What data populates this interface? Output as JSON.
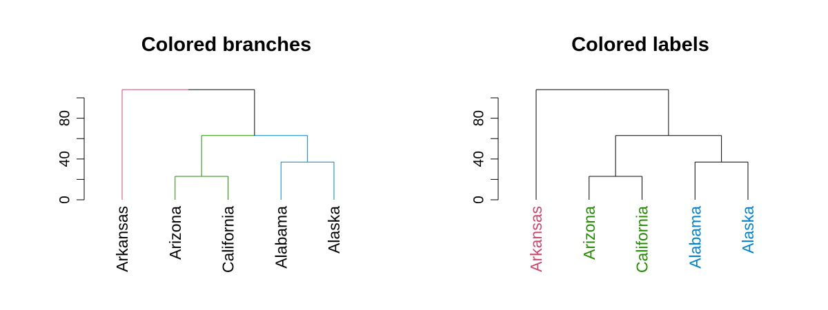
{
  "chart_data": [
    {
      "type": "dendrogram",
      "title": "Colored branches",
      "variant": "colored-branches",
      "ylim": [
        0,
        100
      ],
      "yticks": [
        0,
        40,
        80
      ],
      "leaves": [
        {
          "label": "Arkansas",
          "color": "#CC476B"
        },
        {
          "label": "Arizona",
          "color": "#228B00"
        },
        {
          "label": "California",
          "color": "#228B00"
        },
        {
          "label": "Alabama",
          "color": "#0082CE"
        },
        {
          "label": "Alaska",
          "color": "#0082CE"
        }
      ],
      "merges": [
        {
          "left": 2,
          "right": 3,
          "height": 23,
          "color": "#228B00"
        },
        {
          "left": 4,
          "right": 5,
          "height": 37,
          "color": "#0082CE"
        },
        {
          "left": "m1",
          "right": "m2",
          "height": 63,
          "left_color": "#228B00",
          "right_color": "#0082CE"
        },
        {
          "left": 1,
          "right": "m3",
          "height": 108,
          "left_color": "#CC476B",
          "right_color": "#000000"
        }
      ]
    },
    {
      "type": "dendrogram",
      "title": "Colored labels",
      "variant": "colored-labels",
      "ylim": [
        0,
        100
      ],
      "yticks": [
        0,
        40,
        80
      ],
      "leaves": [
        {
          "label": "Arkansas",
          "color": "#CC476B"
        },
        {
          "label": "Arizona",
          "color": "#228B00"
        },
        {
          "label": "California",
          "color": "#228B00"
        },
        {
          "label": "Alabama",
          "color": "#0082CE"
        },
        {
          "label": "Alaska",
          "color": "#0082CE"
        }
      ],
      "merges": [
        {
          "left": 2,
          "right": 3,
          "height": 23
        },
        {
          "left": 4,
          "right": 5,
          "height": 37
        },
        {
          "left": "m1",
          "right": "m2",
          "height": 63
        },
        {
          "left": 1,
          "right": "m3",
          "height": 108
        }
      ]
    }
  ]
}
